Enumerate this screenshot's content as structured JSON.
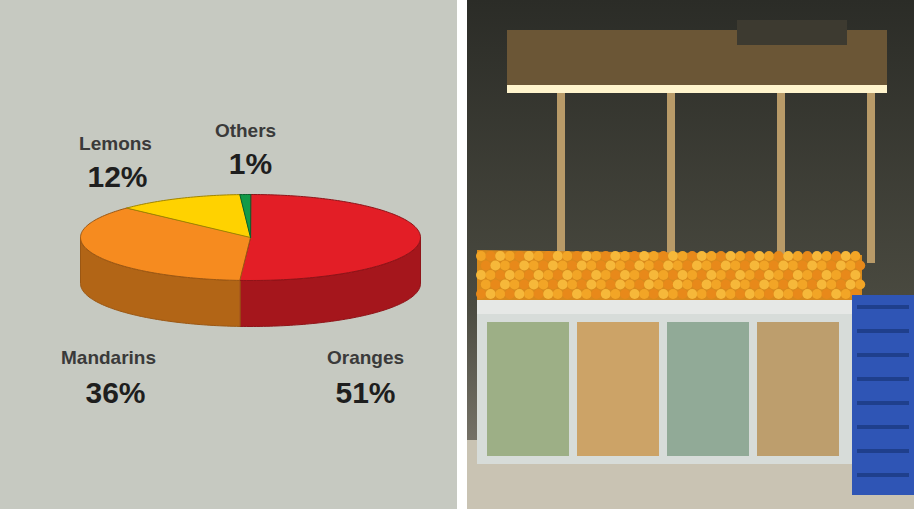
{
  "chart_data": {
    "type": "pie",
    "categories": [
      "Oranges",
      "Mandarins",
      "Lemons",
      "Others"
    ],
    "values": [
      51,
      36,
      12,
      1
    ],
    "value_labels": [
      "51%",
      "36%",
      "12%",
      "1%"
    ],
    "colors": [
      "#e31e26",
      "#f68b1f",
      "#ffd200",
      "#129a48"
    ],
    "data_labels": true
  }
}
